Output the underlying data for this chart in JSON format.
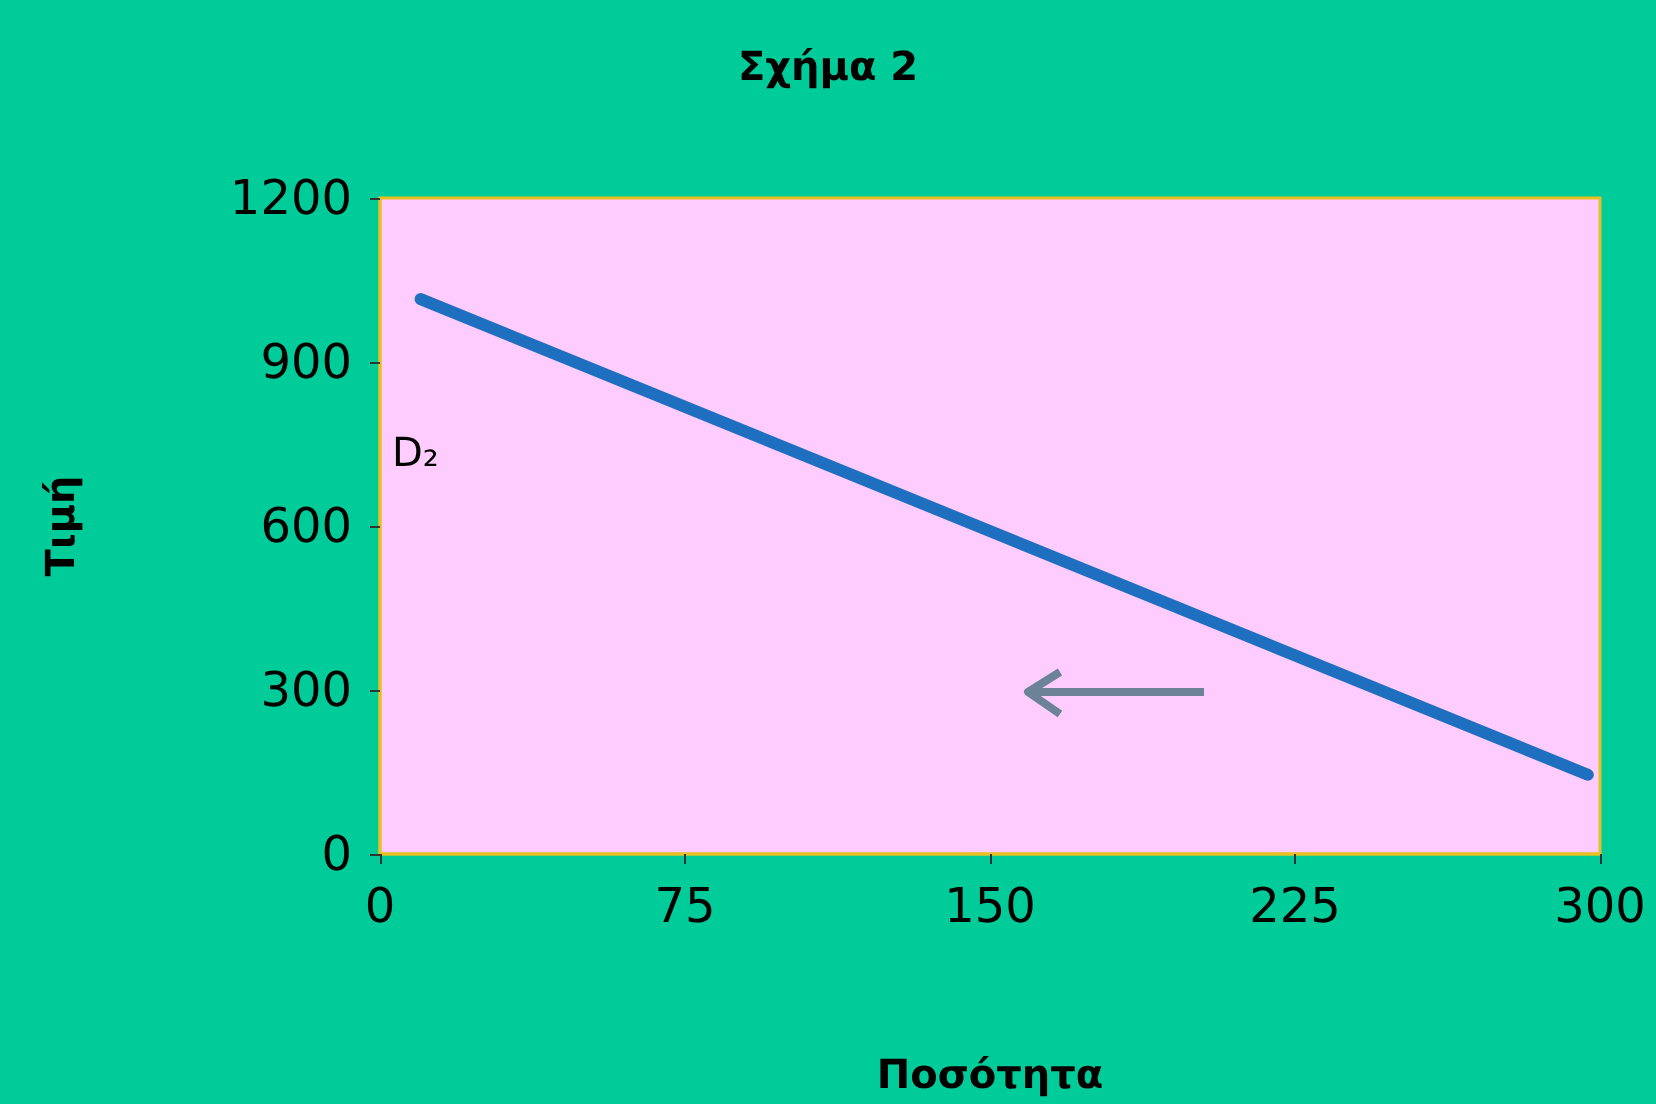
{
  "chart_data": {
    "type": "line",
    "title": "Σχήμα 2",
    "xlabel": "Ποσότητα",
    "ylabel": "Τιμή",
    "x": [
      10,
      297
    ],
    "series": [
      {
        "color": "#1f6fc0",
        "values": [
          1015,
          145
        ]
      }
    ],
    "annotations": [
      "D₂"
    ],
    "xlim": [
      0,
      300
    ],
    "xticks": [
      0,
      75,
      150,
      225,
      300
    ],
    "ylim": [
      0,
      1200
    ],
    "yticks": [
      0,
      300,
      600,
      900,
      1200
    ],
    "grid": false,
    "marker": "none",
    "line_style": "solid"
  }
}
